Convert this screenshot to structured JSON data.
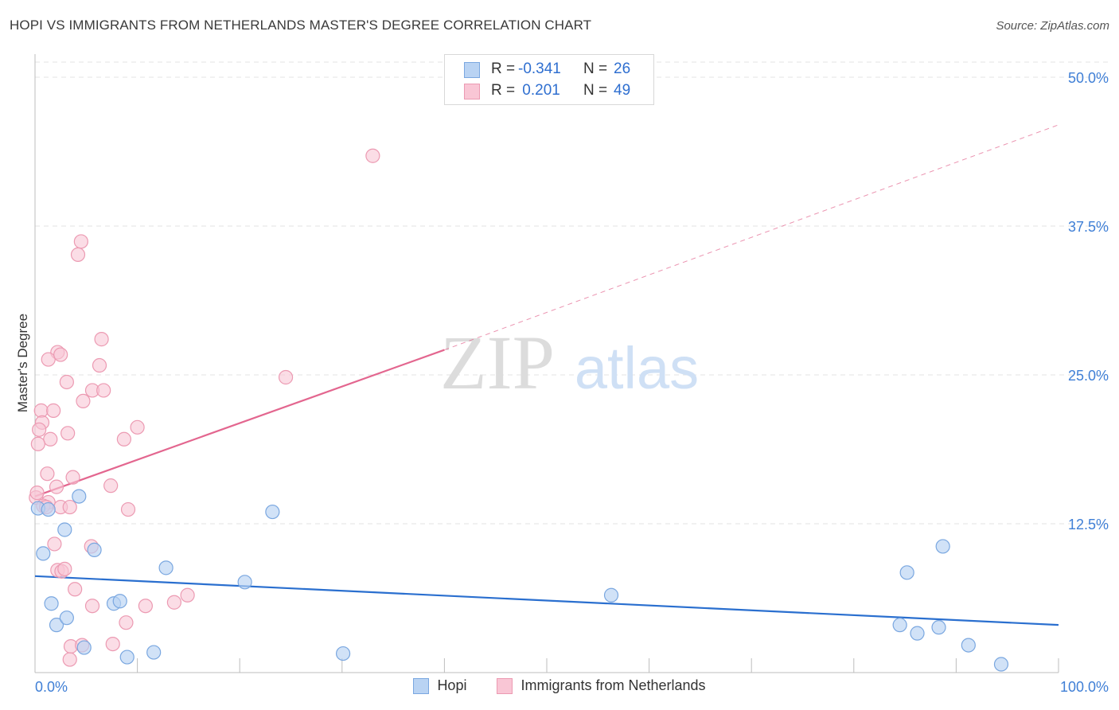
{
  "title": "HOPI VS IMMIGRANTS FROM NETHERLANDS MASTER'S DEGREE CORRELATION CHART",
  "source": "Source: ZipAtlas.com",
  "watermark": {
    "zip": "ZIP",
    "atlas": "atlas"
  },
  "colors": {
    "hopi_fill": "#b9d3f3",
    "hopi_stroke": "#7aa7e0",
    "hopi_line": "#2a6fcf",
    "neth_fill": "#f9c6d5",
    "neth_stroke": "#ec9ab2",
    "neth_line": "#e3668f",
    "grid": "#e3e3e3",
    "axis_label": "#3f7fd6"
  },
  "stats_legend": {
    "hopi": {
      "r_label": "R =",
      "r_value": "-0.341",
      "n_label": "N =",
      "n_value": "26"
    },
    "netherlands": {
      "r_label": "R =",
      "r_value": " 0.201",
      "n_label": "N =",
      "n_value": "49"
    }
  },
  "legend": {
    "hopi": "Hopi",
    "netherlands": "Immigrants from Netherlands"
  },
  "chart_data": {
    "type": "scatter",
    "title": "HOPI VS IMMIGRANTS FROM NETHERLANDS MASTER'S DEGREE CORRELATION CHART",
    "xlabel": "",
    "ylabel": "Master's Degree",
    "xlim": [
      0,
      100
    ],
    "ylim": [
      0,
      50
    ],
    "x_tick_labels": [
      "0.0%",
      "100.0%"
    ],
    "y_ticks": [
      12.5,
      25.0,
      37.5,
      50.0
    ],
    "y_tick_labels": [
      "12.5%",
      "25.0%",
      "37.5%",
      "50.0%"
    ],
    "grid": true,
    "series": [
      {
        "name": "Hopi",
        "points": [
          [
            0.3,
            13.8
          ],
          [
            1.3,
            13.7
          ],
          [
            4.3,
            14.8
          ],
          [
            0.8,
            10.0
          ],
          [
            2.9,
            12.0
          ],
          [
            5.8,
            10.3
          ],
          [
            1.6,
            5.8
          ],
          [
            2.1,
            4.0
          ],
          [
            3.1,
            4.6
          ],
          [
            4.8,
            2.1
          ],
          [
            7.7,
            5.8
          ],
          [
            8.3,
            6.0
          ],
          [
            9.0,
            1.3
          ],
          [
            11.6,
            1.7
          ],
          [
            12.8,
            8.8
          ],
          [
            20.5,
            7.6
          ],
          [
            23.2,
            13.5
          ],
          [
            30.1,
            1.6
          ],
          [
            56.3,
            6.5
          ],
          [
            85.2,
            8.4
          ],
          [
            88.7,
            10.6
          ],
          [
            84.5,
            4.0
          ],
          [
            88.3,
            3.8
          ],
          [
            86.2,
            3.3
          ],
          [
            91.2,
            2.3
          ],
          [
            94.4,
            0.7
          ]
        ],
        "trend": {
          "x": [
            0,
            100
          ],
          "y": [
            8.1,
            4.0
          ]
        }
      },
      {
        "name": "Immigrants from Netherlands",
        "points": [
          [
            33.0,
            43.4
          ],
          [
            4.5,
            36.2
          ],
          [
            4.2,
            35.1
          ],
          [
            6.5,
            28.0
          ],
          [
            2.2,
            26.9
          ],
          [
            1.3,
            26.3
          ],
          [
            6.3,
            25.8
          ],
          [
            2.5,
            26.7
          ],
          [
            3.1,
            24.4
          ],
          [
            5.6,
            23.7
          ],
          [
            6.7,
            23.7
          ],
          [
            4.7,
            22.8
          ],
          [
            0.6,
            22.0
          ],
          [
            1.8,
            22.0
          ],
          [
            0.7,
            21.0
          ],
          [
            3.2,
            20.1
          ],
          [
            0.4,
            20.4
          ],
          [
            1.5,
            19.6
          ],
          [
            8.7,
            19.6
          ],
          [
            10.0,
            20.6
          ],
          [
            0.3,
            19.2
          ],
          [
            24.5,
            24.8
          ],
          [
            1.2,
            16.7
          ],
          [
            3.7,
            16.4
          ],
          [
            2.1,
            15.6
          ],
          [
            7.4,
            15.7
          ],
          [
            0.1,
            14.7
          ],
          [
            1.3,
            14.3
          ],
          [
            0.8,
            14.0
          ],
          [
            1.1,
            13.9
          ],
          [
            2.5,
            13.9
          ],
          [
            3.4,
            13.9
          ],
          [
            9.1,
            13.7
          ],
          [
            1.9,
            10.8
          ],
          [
            5.5,
            10.6
          ],
          [
            2.2,
            8.6
          ],
          [
            2.6,
            8.5
          ],
          [
            2.9,
            8.7
          ],
          [
            3.9,
            7.0
          ],
          [
            14.9,
            6.5
          ],
          [
            13.6,
            5.9
          ],
          [
            5.6,
            5.6
          ],
          [
            10.8,
            5.6
          ],
          [
            8.9,
            4.2
          ],
          [
            3.5,
            2.2
          ],
          [
            7.6,
            2.4
          ],
          [
            4.6,
            2.3
          ],
          [
            3.4,
            1.1
          ],
          [
            0.2,
            15.1
          ]
        ],
        "trend_solid": {
          "x": [
            0,
            40
          ],
          "y": [
            14.8,
            27.1
          ]
        },
        "trend_dashed": {
          "x": [
            40,
            100
          ],
          "y": [
            27.1,
            46.0
          ]
        }
      }
    ]
  }
}
